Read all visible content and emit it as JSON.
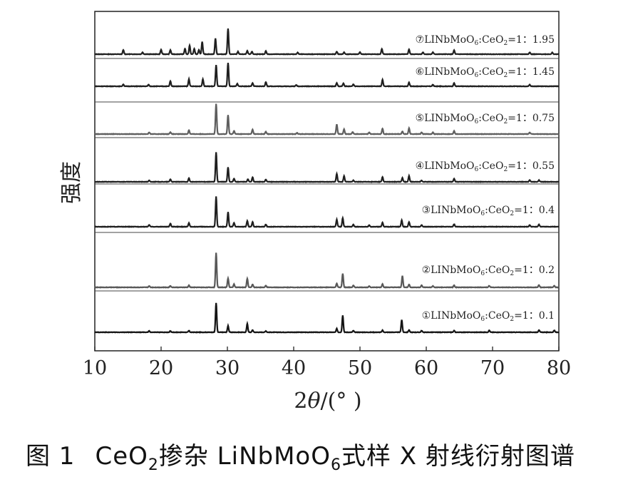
{
  "chart_data": {
    "type": "line",
    "xlabel_prefix": "2",
    "xlabel_theta": "θ",
    "xlabel_unit": "/(°  )",
    "ylabel": "强度",
    "xlim": [
      10,
      80
    ],
    "xticks": [
      "10",
      "20",
      "30",
      "40",
      "50",
      "60",
      "70",
      "80"
    ],
    "grid": false,
    "series": [
      {
        "name": "⑦LINbMoO6:CeO2=1：1.95",
        "label_main": "⑦LINbMoO",
        "label_sub1": "6",
        "label_mid": ":CeO",
        "label_sub2": "2",
        "label_end": "=1：1.95",
        "color": "#1f1f1f",
        "peaks": [
          [
            14.3,
            0.13
          ],
          [
            17.2,
            0.06
          ],
          [
            20.0,
            0.14
          ],
          [
            21.4,
            0.13
          ],
          [
            23.6,
            0.17
          ],
          [
            24.3,
            0.27
          ],
          [
            25.0,
            0.17
          ],
          [
            25.7,
            0.13
          ],
          [
            26.2,
            0.38
          ],
          [
            28.2,
            0.48
          ],
          [
            30.1,
            0.78
          ],
          [
            31.6,
            0.08
          ],
          [
            33.0,
            0.1
          ],
          [
            33.7,
            0.08
          ],
          [
            35.8,
            0.1
          ],
          [
            40.6,
            0.05
          ],
          [
            46.5,
            0.08
          ],
          [
            47.6,
            0.06
          ],
          [
            50.0,
            0.06
          ],
          [
            53.3,
            0.16
          ],
          [
            57.4,
            0.15
          ],
          [
            59.5,
            0.06
          ],
          [
            61.0,
            0.06
          ],
          [
            64.2,
            0.12
          ],
          [
            75.6,
            0.06
          ],
          [
            79.0,
            0.05
          ]
        ]
      },
      {
        "name": "⑥LINbMoO6:CeO2=1：1.45",
        "label_main": "⑥LINbMoO",
        "label_sub1": "6",
        "label_mid": ":CeO",
        "label_sub2": "2",
        "label_end": "=1：1.45",
        "color": "#1f1f1f",
        "peaks": [
          [
            14.3,
            0.06
          ],
          [
            18.1,
            0.05
          ],
          [
            21.4,
            0.16
          ],
          [
            24.2,
            0.22
          ],
          [
            26.3,
            0.22
          ],
          [
            28.3,
            0.65
          ],
          [
            30.1,
            0.72
          ],
          [
            31.5,
            0.08
          ],
          [
            33.8,
            0.1
          ],
          [
            35.8,
            0.13
          ],
          [
            40.4,
            0.04
          ],
          [
            46.5,
            0.1
          ],
          [
            47.5,
            0.09
          ],
          [
            49.0,
            0.06
          ],
          [
            53.4,
            0.2
          ],
          [
            57.4,
            0.12
          ],
          [
            61.0,
            0.05
          ],
          [
            64.2,
            0.1
          ],
          [
            75.6,
            0.05
          ]
        ]
      },
      {
        "name": "⑤LINbMoO6:CeO2=1：0.75",
        "label_main": "⑤LINbMoO",
        "label_sub1": "6",
        "label_mid": ":CeO",
        "label_sub2": "2",
        "label_end": "=1：0.75",
        "color": "#5e5e5e",
        "peaks": [
          [
            18.2,
            0.05
          ],
          [
            21.4,
            0.06
          ],
          [
            24.2,
            0.12
          ],
          [
            28.3,
            0.92
          ],
          [
            30.1,
            0.58
          ],
          [
            31.0,
            0.1
          ],
          [
            33.8,
            0.14
          ],
          [
            35.8,
            0.07
          ],
          [
            40.5,
            0.04
          ],
          [
            46.5,
            0.3
          ],
          [
            47.6,
            0.15
          ],
          [
            48.9,
            0.06
          ],
          [
            51.4,
            0.05
          ],
          [
            53.4,
            0.17
          ],
          [
            56.4,
            0.08
          ],
          [
            57.4,
            0.18
          ],
          [
            59.3,
            0.05
          ],
          [
            61.0,
            0.05
          ],
          [
            64.2,
            0.1
          ],
          [
            75.6,
            0.05
          ]
        ]
      },
      {
        "name": "④LINbMoO6:CeO2=1：0.55",
        "label_main": "④LINbMoO",
        "label_sub1": "6",
        "label_mid": ":CeO",
        "label_sub2": "2",
        "label_end": "=1：0.55",
        "color": "#1f1f1f",
        "peaks": [
          [
            18.2,
            0.04
          ],
          [
            21.4,
            0.08
          ],
          [
            24.2,
            0.11
          ],
          [
            28.3,
            0.9
          ],
          [
            30.1,
            0.45
          ],
          [
            31.0,
            0.1
          ],
          [
            33.1,
            0.08
          ],
          [
            33.8,
            0.14
          ],
          [
            35.8,
            0.07
          ],
          [
            46.5,
            0.25
          ],
          [
            47.6,
            0.18
          ],
          [
            49.0,
            0.05
          ],
          [
            53.4,
            0.15
          ],
          [
            56.4,
            0.12
          ],
          [
            57.4,
            0.18
          ],
          [
            59.3,
            0.04
          ],
          [
            64.2,
            0.1
          ],
          [
            75.6,
            0.05
          ],
          [
            77.0,
            0.05
          ]
        ]
      },
      {
        "name": "③LINbMoO6:CeO2=1：0.4",
        "label_main": "③LINbMoO",
        "label_sub1": "6",
        "label_mid": ":CeO",
        "label_sub2": "2",
        "label_end": "=1：0.4",
        "color": "#1f1f1f",
        "peaks": [
          [
            18.2,
            0.06
          ],
          [
            21.4,
            0.1
          ],
          [
            24.2,
            0.12
          ],
          [
            28.3,
            0.92
          ],
          [
            30.1,
            0.45
          ],
          [
            31.0,
            0.12
          ],
          [
            33.0,
            0.18
          ],
          [
            33.8,
            0.15
          ],
          [
            35.8,
            0.07
          ],
          [
            46.5,
            0.22
          ],
          [
            47.4,
            0.27
          ],
          [
            49.0,
            0.07
          ],
          [
            51.4,
            0.05
          ],
          [
            53.4,
            0.13
          ],
          [
            56.3,
            0.2
          ],
          [
            57.4,
            0.15
          ],
          [
            59.3,
            0.05
          ],
          [
            64.2,
            0.08
          ],
          [
            75.6,
            0.05
          ],
          [
            77.0,
            0.07
          ]
        ]
      },
      {
        "name": "②LINbMoO6:CeO2=1：0.2",
        "label_main": "②LINbMoO",
        "label_sub1": "6",
        "label_mid": ":CeO",
        "label_sub2": "2",
        "label_end": "=1：0.2",
        "color": "#585858",
        "peaks": [
          [
            18.2,
            0.04
          ],
          [
            21.4,
            0.05
          ],
          [
            24.2,
            0.06
          ],
          [
            28.3,
            1.05
          ],
          [
            30.1,
            0.28
          ],
          [
            31.0,
            0.1
          ],
          [
            33.0,
            0.27
          ],
          [
            33.8,
            0.09
          ],
          [
            35.8,
            0.05
          ],
          [
            46.5,
            0.12
          ],
          [
            47.4,
            0.42
          ],
          [
            49.0,
            0.06
          ],
          [
            51.4,
            0.04
          ],
          [
            53.4,
            0.1
          ],
          [
            56.4,
            0.35
          ],
          [
            57.4,
            0.09
          ],
          [
            59.3,
            0.06
          ],
          [
            61.0,
            0.04
          ],
          [
            64.2,
            0.06
          ],
          [
            69.5,
            0.05
          ],
          [
            77.0,
            0.07
          ],
          [
            79.3,
            0.05
          ]
        ]
      },
      {
        "name": "①LINbMoO6:CeO2=1：0.1",
        "label_main": "①LINbMoO",
        "label_sub1": "6",
        "label_mid": ":CeO",
        "label_sub2": "2",
        "label_end": "=1：0.1",
        "color": "#141414",
        "peaks": [
          [
            18.2,
            0.04
          ],
          [
            21.4,
            0.04
          ],
          [
            24.2,
            0.05
          ],
          [
            28.3,
            0.9
          ],
          [
            30.1,
            0.2
          ],
          [
            33.0,
            0.26
          ],
          [
            33.8,
            0.07
          ],
          [
            35.8,
            0.04
          ],
          [
            46.5,
            0.11
          ],
          [
            47.4,
            0.52
          ],
          [
            49.0,
            0.05
          ],
          [
            53.4,
            0.06
          ],
          [
            56.3,
            0.38
          ],
          [
            57.4,
            0.07
          ],
          [
            59.3,
            0.05
          ],
          [
            64.2,
            0.05
          ],
          [
            69.5,
            0.06
          ],
          [
            77.0,
            0.07
          ],
          [
            79.3,
            0.06
          ]
        ]
      }
    ]
  },
  "caption": {
    "fig_label": "图 1",
    "text_a": "CeO",
    "sub_a": "2",
    "text_b": "掺杂 LiNbMoO",
    "sub_b": "6",
    "text_c": "式样 X 射线衍射图谱"
  }
}
